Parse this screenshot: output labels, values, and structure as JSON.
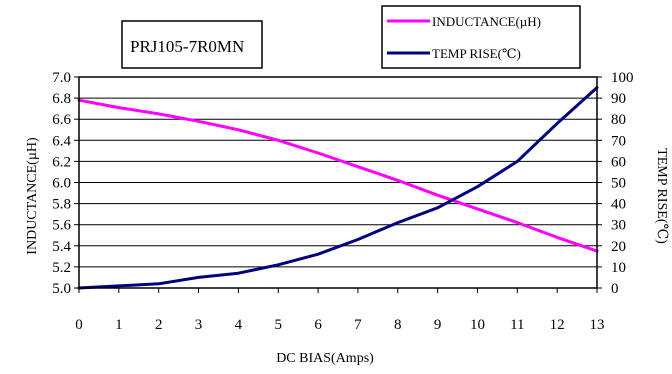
{
  "chart_data": {
    "type": "line",
    "title": "PRJ105-7R0MN",
    "xlabel": "DC BIAS(Amps)",
    "ylabel_left": "INDUCTANCE(µH)",
    "ylabel_right": "TEMP RISE(℃)",
    "x_ticks": [
      "0",
      "1",
      "2",
      "3",
      "4",
      "5",
      "6",
      "7",
      "8",
      "9",
      "10",
      "11",
      "12",
      "13"
    ],
    "y_left_ticks": [
      "5.0",
      "5.2",
      "5.4",
      "5.6",
      "5.8",
      "6.0",
      "6.2",
      "6.4",
      "6.6",
      "6.8",
      "7.0"
    ],
    "y_right_ticks": [
      "0",
      "10",
      "20",
      "30",
      "40",
      "50",
      "60",
      "70",
      "80",
      "90",
      "100"
    ],
    "xlim": [
      0,
      13
    ],
    "ylim_left": [
      5.0,
      7.0
    ],
    "ylim_right": [
      0,
      100
    ],
    "grid": "horizontal",
    "legend_position": "top-right",
    "series": [
      {
        "name": "INDUCTANCE(µH)",
        "axis": "left",
        "color": "#ff00ff",
        "x": [
          0,
          1,
          2,
          3,
          4,
          5,
          6,
          7,
          8,
          9,
          10,
          11,
          12,
          13
        ],
        "y": [
          6.78,
          6.71,
          6.65,
          6.58,
          6.5,
          6.4,
          6.28,
          6.15,
          6.02,
          5.88,
          5.75,
          5.62,
          5.48,
          5.35
        ]
      },
      {
        "name": "TEMP RISE(℃)",
        "axis": "right",
        "color": "#000080",
        "x": [
          0,
          1,
          2,
          3,
          4,
          5,
          6,
          7,
          8,
          9,
          10,
          11,
          12,
          13
        ],
        "y": [
          0,
          1,
          2,
          5,
          7,
          11,
          16,
          23,
          31,
          38,
          48,
          60,
          78,
          95
        ]
      }
    ]
  }
}
